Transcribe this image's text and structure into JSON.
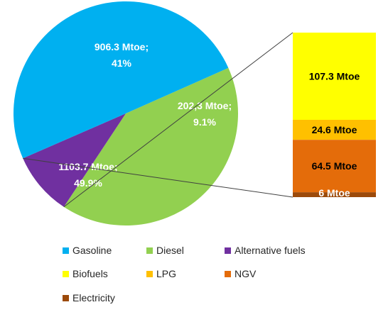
{
  "colors": {
    "gasoline": "#00b0f0",
    "diesel": "#92d050",
    "alternative": "#7030a0",
    "biofuels": "#ffff00",
    "lpg": "#ffc000",
    "ngv": "#e46c0a",
    "electricity": "#9c4a0a"
  },
  "chart_data": {
    "type": "pie",
    "unit": "Mtoe",
    "slices": [
      {
        "key": "diesel",
        "value": 906.3,
        "label_value": "906.3 Mtoe;",
        "label_pct": "41%"
      },
      {
        "key": "alternative",
        "value": 202.3,
        "label_value": "202,3 Mtoe;",
        "label_pct": "9.1%"
      },
      {
        "key": "gasoline",
        "value": 1103.7,
        "label_value": "1103.7 Mtoe;",
        "label_pct": "49.9%"
      }
    ],
    "breakdown": {
      "of": "alternative",
      "segments": [
        {
          "key": "biofuels",
          "value": 107.3,
          "label": "107.3 Mtoe"
        },
        {
          "key": "lpg",
          "value": 24.6,
          "label": "24.6 Mtoe"
        },
        {
          "key": "ngv",
          "value": 64.5,
          "label": "64.5 Mtoe"
        },
        {
          "key": "electricity",
          "value": 6,
          "label": "6 Mtoe"
        }
      ]
    },
    "legend": [
      {
        "key": "gasoline",
        "label": "Gasoline"
      },
      {
        "key": "diesel",
        "label": "Diesel"
      },
      {
        "key": "alternative",
        "label": "Alternative fuels"
      },
      {
        "key": "biofuels",
        "label": "Biofuels"
      },
      {
        "key": "lpg",
        "label": "LPG"
      },
      {
        "key": "ngv",
        "label": "NGV"
      },
      {
        "key": "electricity",
        "label": "Electricity"
      }
    ],
    "legend_position": "bottom"
  }
}
